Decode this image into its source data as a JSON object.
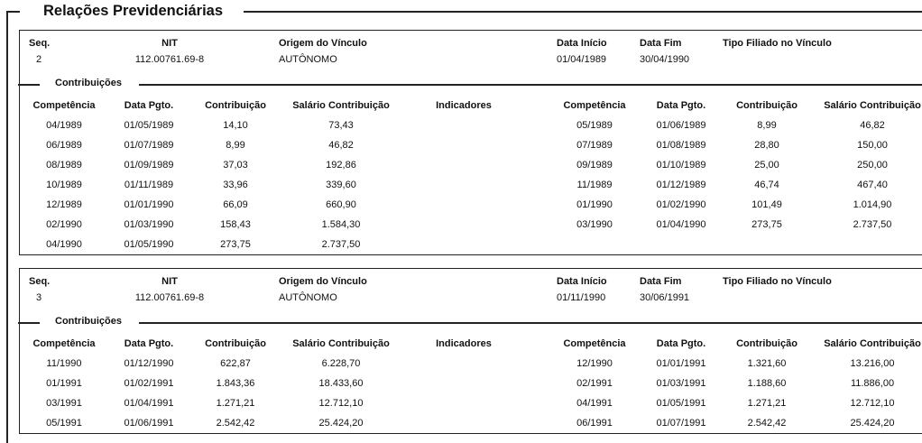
{
  "section_title": "Relações Previdenciárias",
  "labels": {
    "seq": "Seq.",
    "nit": "NIT",
    "origem": "Origem do Vínculo",
    "data_inicio": "Data Início",
    "data_fim": "Data Fim",
    "tipo_filiado": "Tipo Filiado no Vínculo",
    "contribuicoes": "Contribuições",
    "competencia": "Competência",
    "data_pgto": "Data Pgto.",
    "contribuicao": "Contribuição",
    "salario": "Salário Contribuição",
    "indicadores": "Indicadores"
  },
  "vinculos": [
    {
      "seq": "2",
      "nit": "112.00761.69-8",
      "origem": "AUTÔNOMO",
      "data_inicio": "01/04/1989",
      "data_fim": "30/04/1990",
      "tipo_filiado": "",
      "left": [
        [
          "04/1989",
          "01/05/1989",
          "14,10",
          "73,43"
        ],
        [
          "06/1989",
          "01/07/1989",
          "8,99",
          "46,82"
        ],
        [
          "08/1989",
          "01/09/1989",
          "37,03",
          "192,86"
        ],
        [
          "10/1989",
          "01/11/1989",
          "33,96",
          "339,60"
        ],
        [
          "12/1989",
          "01/01/1990",
          "66,09",
          "660,90"
        ],
        [
          "02/1990",
          "01/03/1990",
          "158,43",
          "1.584,30"
        ],
        [
          "04/1990",
          "01/05/1990",
          "273,75",
          "2.737,50"
        ]
      ],
      "right": [
        [
          "05/1989",
          "01/06/1989",
          "8,99",
          "46,82"
        ],
        [
          "07/1989",
          "01/08/1989",
          "28,80",
          "150,00"
        ],
        [
          "09/1989",
          "01/10/1989",
          "25,00",
          "250,00"
        ],
        [
          "11/1989",
          "01/12/1989",
          "46,74",
          "467,40"
        ],
        [
          "01/1990",
          "01/02/1990",
          "101,49",
          "1.014,90"
        ],
        [
          "03/1990",
          "01/04/1990",
          "273,75",
          "2.737,50"
        ]
      ]
    },
    {
      "seq": "3",
      "nit": "112.00761.69-8",
      "origem": "AUTÔNOMO",
      "data_inicio": "01/11/1990",
      "data_fim": "30/06/1991",
      "tipo_filiado": "",
      "left": [
        [
          "11/1990",
          "01/12/1990",
          "622,87",
          "6.228,70"
        ],
        [
          "01/1991",
          "01/02/1991",
          "1.843,36",
          "18.433,60"
        ],
        [
          "03/1991",
          "01/04/1991",
          "1.271,21",
          "12.712,10"
        ],
        [
          "05/1991",
          "01/06/1991",
          "2.542,42",
          "25.424,20"
        ]
      ],
      "right": [
        [
          "12/1990",
          "01/01/1991",
          "1.321,60",
          "13.216,00"
        ],
        [
          "02/1991",
          "01/03/1991",
          "1.188,60",
          "11.886,00"
        ],
        [
          "04/1991",
          "01/05/1991",
          "1.271,21",
          "12.712,10"
        ],
        [
          "06/1991",
          "01/07/1991",
          "2.542,42",
          "25.424,20"
        ]
      ]
    }
  ]
}
